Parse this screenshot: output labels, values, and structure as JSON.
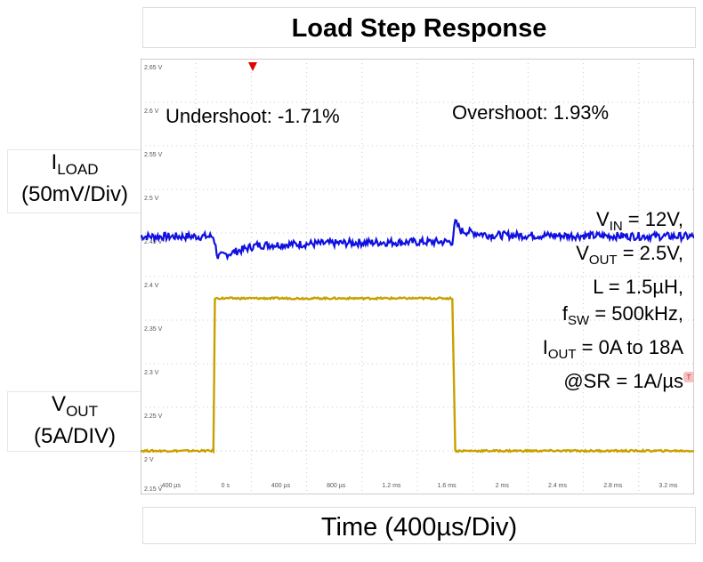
{
  "chart_data": {
    "type": "line",
    "title": "Load Step Response",
    "xlabel": "Time (400µs/Div)",
    "ylabel_top": {
      "main": "I",
      "sub": "LOAD",
      "scale": "(50mV/Div)"
    },
    "ylabel_bottom": {
      "main": "V",
      "sub": "OUT",
      "scale": "(5A/DIV)"
    },
    "x_ticks": [
      "-400 µs",
      "0 s",
      "400 µs",
      "800 µs",
      "1.2 ms",
      "1.6 ms",
      "2 ms",
      "2.4 ms",
      "2.8 ms",
      "3.2 ms"
    ],
    "y_ticks": [
      "2.65 V",
      "2.6 V",
      "2.55 V",
      "2.5 V",
      "2.45 V",
      "2.4 V",
      "2.35 V",
      "2.3 V",
      "2.25 V",
      "2 V",
      "2.15 V"
    ],
    "grid": true,
    "trigger_time_us": 0,
    "series": [
      {
        "color": "#1010e0",
        "x_us": [
          -500,
          0,
          30,
          300,
          1000,
          1640,
          1660,
          1700,
          1900,
          3300
        ],
        "y_div": [
          5.92,
          5.92,
          5.45,
          5.72,
          5.78,
          5.8,
          6.25,
          6.05,
          5.95,
          5.92
        ]
      },
      {
        "color": "#c8a000",
        "x_us": [
          -500,
          0,
          10,
          1640,
          1660,
          3300
        ],
        "y_div": [
          1.0,
          1.0,
          4.5,
          4.5,
          1.0,
          1.0
        ]
      }
    ],
    "annotations": {
      "undershoot": "Undershoot: -1.71%",
      "overshoot": "Overshoot: 1.93%"
    },
    "conditions": [
      {
        "main": "V",
        "sub": "IN",
        "rest": " = 12V,"
      },
      {
        "main": "V",
        "sub": "OUT",
        "rest": " = 2.5V,"
      },
      {
        "main": "L = 1.5µH,",
        "sub": "",
        "rest": ""
      },
      {
        "main": "f",
        "sub": "SW",
        "rest": " = 500kHz,"
      },
      {
        "main": "I",
        "sub": "OUT",
        "rest": " = 0A to 18A"
      },
      {
        "main": "@SR = 1A/µs",
        "sub": "",
        "rest": ""
      }
    ]
  }
}
